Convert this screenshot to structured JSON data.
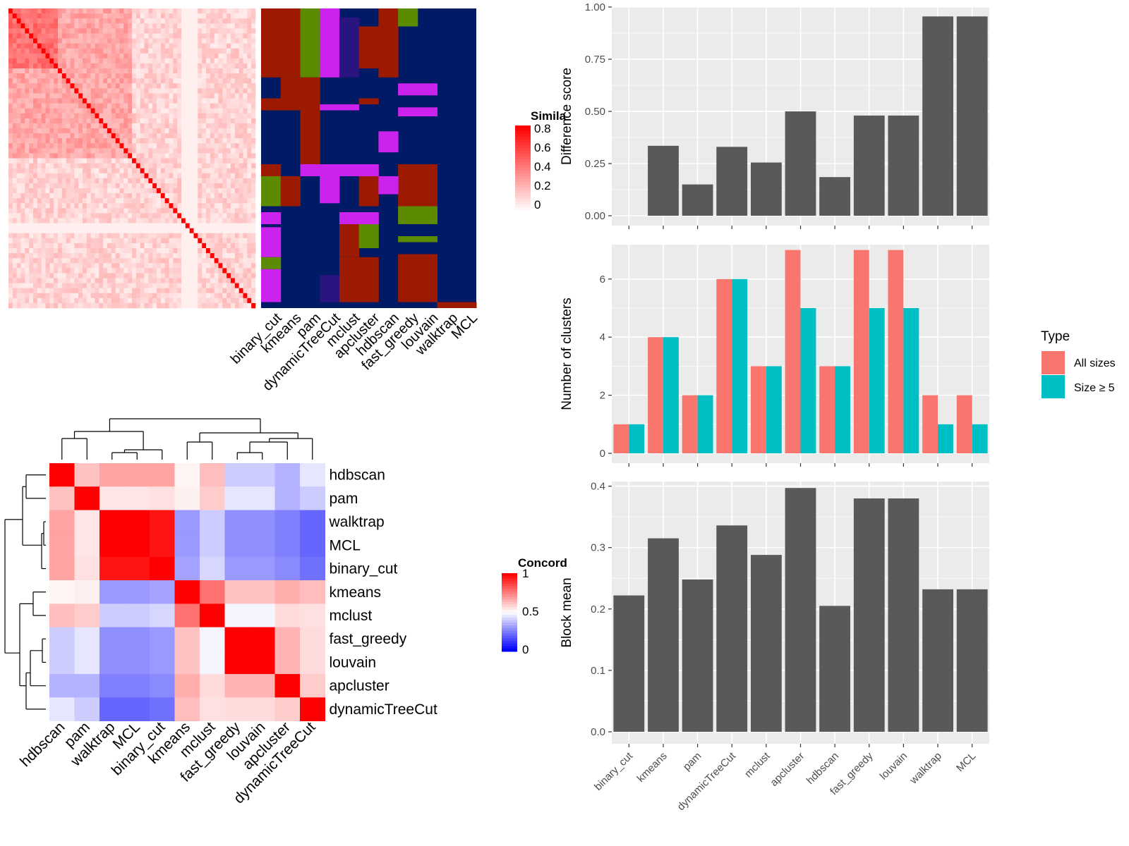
{
  "colors": {
    "panel_bg": "#ebebeb",
    "gridline": "#ffffff",
    "bar": "#595959",
    "all_sizes": "#f8766d",
    "size_ge5": "#00bfc4",
    "heat_red": "#ff0000",
    "heat_blue": "#0000ff",
    "class_navy": "#001a66",
    "class_darkred": "#9c1a00",
    "class_green": "#5c8a00",
    "class_magenta": "#cc22ee",
    "class_indigo": "#2a1480"
  },
  "chart_data": [
    {
      "id": "similarity_heatmap",
      "type": "heatmap",
      "legend_title": "Simila",
      "legend_ticks": [
        "0.8",
        "0.6",
        "0.4",
        "0.2",
        "0"
      ],
      "column_labels": [
        "binary_cut",
        "kmeans",
        "pam",
        "dynamicTreeCut",
        "mclust",
        "apcluster",
        "hdbscan",
        "fast_greedy",
        "louvain",
        "walktrap",
        "MCL"
      ]
    },
    {
      "id": "difference_score",
      "type": "bar",
      "categories": [
        "binary_cut",
        "kmeans",
        "pam",
        "dynamicTreeCut",
        "mclust",
        "apcluster",
        "hdbscan",
        "fast_greedy",
        "louvain",
        "walktrap",
        "MCL"
      ],
      "values": [
        0,
        0.335,
        0.15,
        0.33,
        0.255,
        0.5,
        0.185,
        0.48,
        0.48,
        0.955,
        0.955
      ],
      "ylabel": "Difference score",
      "ylim": [
        0,
        1.0
      ],
      "yticks": [
        "0.00",
        "0.25",
        "0.50",
        "0.75",
        "1.00"
      ]
    },
    {
      "id": "number_of_clusters",
      "type": "bar",
      "categories": [
        "binary_cut",
        "kmeans",
        "pam",
        "dynamicTreeCut",
        "mclust",
        "apcluster",
        "hdbscan",
        "fast_greedy",
        "louvain",
        "walktrap",
        "MCL"
      ],
      "series": [
        {
          "name": "All sizes",
          "values": [
            1,
            4,
            2,
            6,
            3,
            7,
            3,
            7,
            7,
            2,
            2
          ]
        },
        {
          "name": "Size ≥ 5",
          "values": [
            1,
            4,
            2,
            6,
            3,
            5,
            3,
            5,
            5,
            1,
            1
          ]
        }
      ],
      "ylabel": "Number of clusters",
      "ylim": [
        0,
        7.2
      ],
      "yticks": [
        "0",
        "2",
        "4",
        "6"
      ],
      "legend_title": "Type",
      "legend_position": "right"
    },
    {
      "id": "block_mean",
      "type": "bar",
      "categories": [
        "binary_cut",
        "kmeans",
        "pam",
        "dynamicTreeCut",
        "mclust",
        "apcluster",
        "hdbscan",
        "fast_greedy",
        "louvain",
        "walktrap",
        "MCL"
      ],
      "values": [
        0.222,
        0.315,
        0.248,
        0.336,
        0.288,
        0.397,
        0.205,
        0.38,
        0.38,
        0.232,
        0.232
      ],
      "ylabel": "Block mean",
      "ylim": [
        0,
        0.41
      ],
      "yticks": [
        "0.0",
        "0.1",
        "0.2",
        "0.3",
        "0.4"
      ]
    },
    {
      "id": "concordance_heatmap",
      "type": "heatmap",
      "legend_title": "Concord",
      "legend_ticks": [
        "1",
        "0.5",
        "0"
      ],
      "labels": [
        "hdbscan",
        "pam",
        "walktrap",
        "MCL",
        "binary_cut",
        "kmeans",
        "mclust",
        "fast_greedy",
        "louvain",
        "apcluster",
        "dynamicTreeCut"
      ],
      "matrix": [
        [
          1.0,
          0.62,
          0.68,
          0.68,
          0.68,
          0.52,
          0.63,
          0.4,
          0.4,
          0.35,
          0.45
        ],
        [
          0.62,
          1.0,
          0.55,
          0.55,
          0.56,
          0.53,
          0.6,
          0.45,
          0.45,
          0.35,
          0.4
        ],
        [
          0.68,
          0.55,
          1.0,
          1.0,
          0.96,
          0.3,
          0.4,
          0.28,
          0.28,
          0.25,
          0.2
        ],
        [
          0.68,
          0.55,
          1.0,
          1.0,
          0.96,
          0.3,
          0.4,
          0.28,
          0.28,
          0.25,
          0.2
        ],
        [
          0.68,
          0.56,
          0.96,
          0.96,
          1.0,
          0.32,
          0.42,
          0.3,
          0.3,
          0.27,
          0.22
        ],
        [
          0.52,
          0.53,
          0.3,
          0.3,
          0.32,
          1.0,
          0.78,
          0.62,
          0.62,
          0.66,
          0.63
        ],
        [
          0.63,
          0.6,
          0.4,
          0.4,
          0.42,
          0.78,
          1.0,
          0.48,
          0.48,
          0.57,
          0.56
        ],
        [
          0.4,
          0.45,
          0.28,
          0.28,
          0.3,
          0.62,
          0.48,
          1.0,
          1.0,
          0.65,
          0.57
        ],
        [
          0.4,
          0.45,
          0.28,
          0.28,
          0.3,
          0.62,
          0.48,
          1.0,
          1.0,
          0.65,
          0.57
        ],
        [
          0.35,
          0.35,
          0.25,
          0.25,
          0.27,
          0.66,
          0.57,
          0.65,
          0.65,
          1.0,
          0.6
        ],
        [
          0.45,
          0.4,
          0.2,
          0.2,
          0.22,
          0.63,
          0.56,
          0.57,
          0.57,
          0.6,
          1.0
        ]
      ]
    }
  ]
}
